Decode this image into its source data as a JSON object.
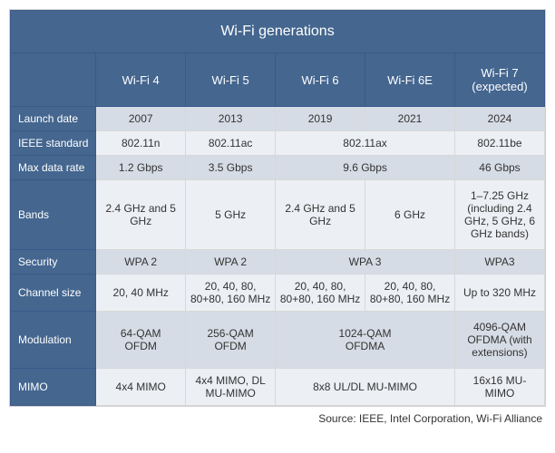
{
  "title": "Wi-Fi generations",
  "source": "Source: IEEE, Intel Corporation, Wi-Fi Alliance",
  "colors": {
    "header_bg": "#44668f",
    "header_fg": "#ffffff",
    "row_odd_bg": "#d6dce5",
    "row_even_bg": "#eceff4",
    "border": "#d8d8d8",
    "text": "#333333"
  },
  "fonts": {
    "title_size_pt": 16,
    "colhead_size_pt": 13,
    "rowhead_size_pt": 12,
    "cell_size_pt": 12
  },
  "columns": [
    "Wi-Fi 4",
    "Wi-Fi 5",
    "Wi-Fi 6",
    "Wi-Fi 6E",
    "Wi-Fi 7 (expected)"
  ],
  "rows": [
    {
      "label": "Launch date",
      "cells": [
        {
          "text": "2007",
          "span": 1
        },
        {
          "text": "2013",
          "span": 1
        },
        {
          "text": "2019",
          "span": 1
        },
        {
          "text": "2021",
          "span": 1
        },
        {
          "text": "2024",
          "span": 1
        }
      ]
    },
    {
      "label": "IEEE standard",
      "cells": [
        {
          "text": "802.11n",
          "span": 1
        },
        {
          "text": "802.11ac",
          "span": 1
        },
        {
          "text": "802.11ax",
          "span": 2
        },
        {
          "text": "802.11be",
          "span": 1
        }
      ]
    },
    {
      "label": "Max data rate",
      "cells": [
        {
          "text": "1.2 Gbps",
          "span": 1
        },
        {
          "text": "3.5 Gbps",
          "span": 1
        },
        {
          "text": "9.6 Gbps",
          "span": 2
        },
        {
          "text": "46 Gbps",
          "span": 1
        }
      ]
    },
    {
      "label": "Bands",
      "cells": [
        {
          "text": "2.4 GHz and 5 GHz",
          "span": 1
        },
        {
          "text": "5 GHz",
          "span": 1
        },
        {
          "text": "2.4 GHz and 5 GHz",
          "span": 1
        },
        {
          "text": "6 GHz",
          "span": 1
        },
        {
          "text": "1–7.25 GHz (including 2.4 GHz, 5 GHz, 6 GHz bands)",
          "span": 1
        }
      ]
    },
    {
      "label": "Security",
      "cells": [
        {
          "text": "WPA 2",
          "span": 1
        },
        {
          "text": "WPA 2",
          "span": 1
        },
        {
          "text": "WPA 3",
          "span": 2
        },
        {
          "text": "WPA3",
          "span": 1
        }
      ]
    },
    {
      "label": "Channel size",
      "cells": [
        {
          "text": "20, 40 MHz",
          "span": 1
        },
        {
          "text": "20, 40, 80, 80+80, 160 MHz",
          "span": 1
        },
        {
          "text": "20, 40, 80, 80+80, 160 MHz",
          "span": 1
        },
        {
          "text": "20, 40, 80, 80+80, 160 MHz",
          "span": 1
        },
        {
          "text": "Up to 320 MHz",
          "span": 1
        }
      ]
    },
    {
      "label": "Modulation",
      "cells": [
        {
          "text": "64-QAM\nOFDM",
          "span": 1
        },
        {
          "text": "256-QAM\nOFDM",
          "span": 1
        },
        {
          "text": "1024-QAM\nOFDMA",
          "span": 2
        },
        {
          "text": "4096-QAM\nOFDMA (with extensions)",
          "span": 1
        }
      ]
    },
    {
      "label": "MIMO",
      "cells": [
        {
          "text": "4x4 MIMO",
          "span": 1
        },
        {
          "text": "4x4 MIMO, DL MU-MIMO",
          "span": 1
        },
        {
          "text": "8x8 UL/DL MU-MIMO",
          "span": 2
        },
        {
          "text": "16x16 MU-MIMO",
          "span": 1
        }
      ]
    }
  ]
}
